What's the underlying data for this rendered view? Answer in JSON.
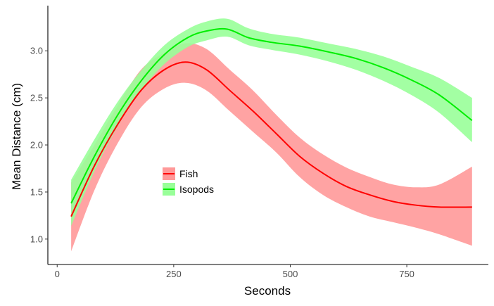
{
  "chart_data": {
    "type": "line",
    "title": "",
    "xlabel": "Seconds",
    "ylabel": "Mean Distance (cm)",
    "xlim": [
      -20,
      925
    ],
    "ylim": [
      0.73,
      3.48
    ],
    "xticks": [
      0,
      250,
      500,
      750
    ],
    "xtick_labels": [
      "0",
      "250",
      "500",
      "750"
    ],
    "yticks": [
      1.0,
      1.5,
      2.0,
      2.5,
      3.0
    ],
    "ytick_labels": [
      "1.0",
      "1.5",
      "2.0",
      "2.5",
      "3.0"
    ],
    "grid": false,
    "legend_position": "inside-center-left",
    "series": [
      {
        "name": "Fish",
        "color": "#ff0000",
        "band_color": "#ff9999",
        "x": [
          30,
          80,
          130,
          180,
          230,
          275,
          320,
          370,
          420,
          470,
          520,
          570,
          620,
          670,
          720,
          770,
          820,
          890
        ],
        "y": [
          1.24,
          1.78,
          2.22,
          2.58,
          2.8,
          2.88,
          2.8,
          2.58,
          2.36,
          2.12,
          1.88,
          1.7,
          1.56,
          1.47,
          1.4,
          1.36,
          1.34,
          1.34
        ],
        "lower": [
          0.87,
          1.52,
          2.02,
          2.4,
          2.6,
          2.66,
          2.58,
          2.36,
          2.14,
          1.92,
          1.66,
          1.47,
          1.34,
          1.24,
          1.18,
          1.12,
          1.05,
          0.93
        ],
        "upper": [
          1.6,
          2.0,
          2.42,
          2.8,
          2.98,
          3.08,
          3.02,
          2.8,
          2.58,
          2.32,
          2.08,
          1.9,
          1.76,
          1.66,
          1.58,
          1.55,
          1.58,
          1.77
        ]
      },
      {
        "name": "Isopods",
        "color": "#00ee00",
        "band_color": "#99ff99",
        "x": [
          30,
          80,
          130,
          180,
          230,
          280,
          320,
          365,
          410,
          460,
          520,
          580,
          640,
          700,
          760,
          820,
          890
        ],
        "y": [
          1.38,
          1.88,
          2.32,
          2.68,
          2.96,
          3.14,
          3.21,
          3.23,
          3.14,
          3.09,
          3.05,
          2.99,
          2.92,
          2.82,
          2.69,
          2.53,
          2.26
        ],
        "lower": [
          1.14,
          1.72,
          2.2,
          2.58,
          2.86,
          3.04,
          3.11,
          3.15,
          3.06,
          3.01,
          2.96,
          2.89,
          2.8,
          2.68,
          2.53,
          2.34,
          2.03
        ],
        "upper": [
          1.63,
          2.06,
          2.46,
          2.79,
          3.06,
          3.23,
          3.31,
          3.34,
          3.24,
          3.18,
          3.14,
          3.08,
          3.02,
          2.94,
          2.83,
          2.71,
          2.5
        ]
      }
    ]
  }
}
